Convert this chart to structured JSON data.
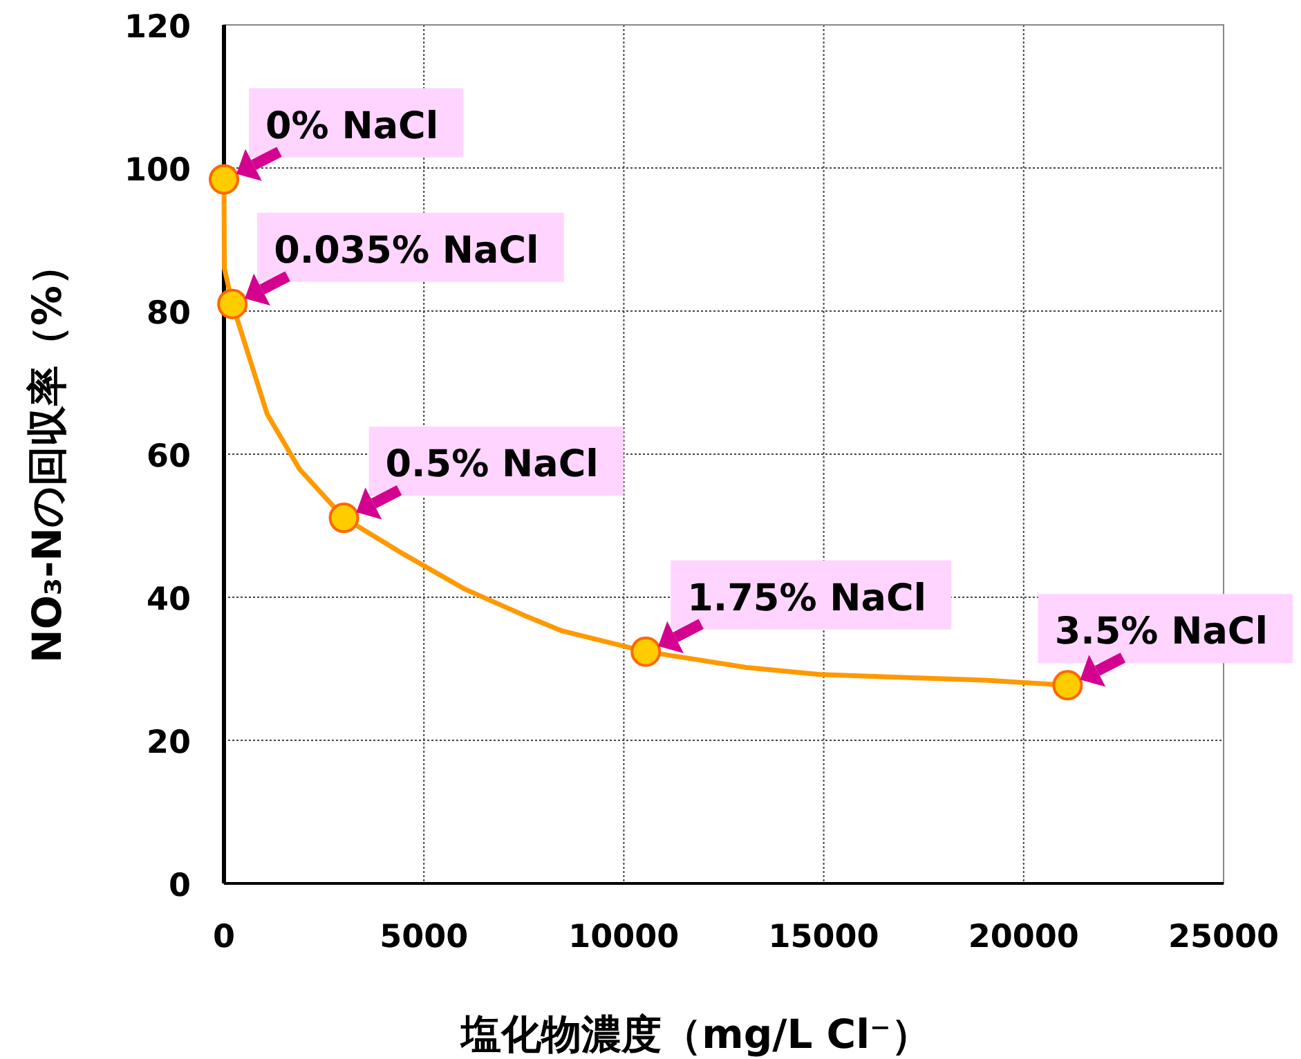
{
  "chart_data": {
    "type": "scatter",
    "xlabel": "塩化物濃度（mg/L Cl⁻）",
    "ylabel": "NO₃-Nの回収率（%）",
    "xlim": [
      0,
      25000
    ],
    "xticks": [
      0,
      5000,
      10000,
      15000,
      20000,
      25000
    ],
    "ylim": [
      0,
      120
    ],
    "yticks": [
      0,
      20,
      40,
      60,
      80,
      100,
      120
    ],
    "grid": true,
    "series": [
      {
        "type": "line",
        "color": "#ff9900",
        "line_style": "solid",
        "x": [
          0,
          10,
          210,
          1080,
          1890,
          3000,
          4500,
          6000,
          7535,
          8455,
          10550,
          13060,
          14900,
          19050,
          21100
        ],
        "values": [
          98.4,
          86,
          81,
          65.6,
          57.9,
          51.1,
          46,
          41.2,
          37.4,
          35.3,
          32.4,
          30.2,
          29.2,
          28.4,
          27.7
        ]
      },
      {
        "color": "#ffcc00",
        "marker": "circle",
        "x": [
          0,
          210,
          3000,
          10550,
          21100
        ],
        "values": [
          98.4,
          81,
          51.1,
          32.4,
          27.7
        ]
      }
    ],
    "annotations": [
      {
        "text": "0% NaCl",
        "x": 0,
        "y": 98.4
      },
      {
        "text": "0.035% NaCl",
        "x": 210,
        "y": 81
      },
      {
        "text": "0.5% NaCl",
        "x": 3000,
        "y": 51.1
      },
      {
        "text": "1.75% NaCl",
        "x": 10550,
        "y": 32.4
      },
      {
        "text": "3.5% NaCl",
        "x": 21100,
        "y": 27.7
      }
    ]
  }
}
